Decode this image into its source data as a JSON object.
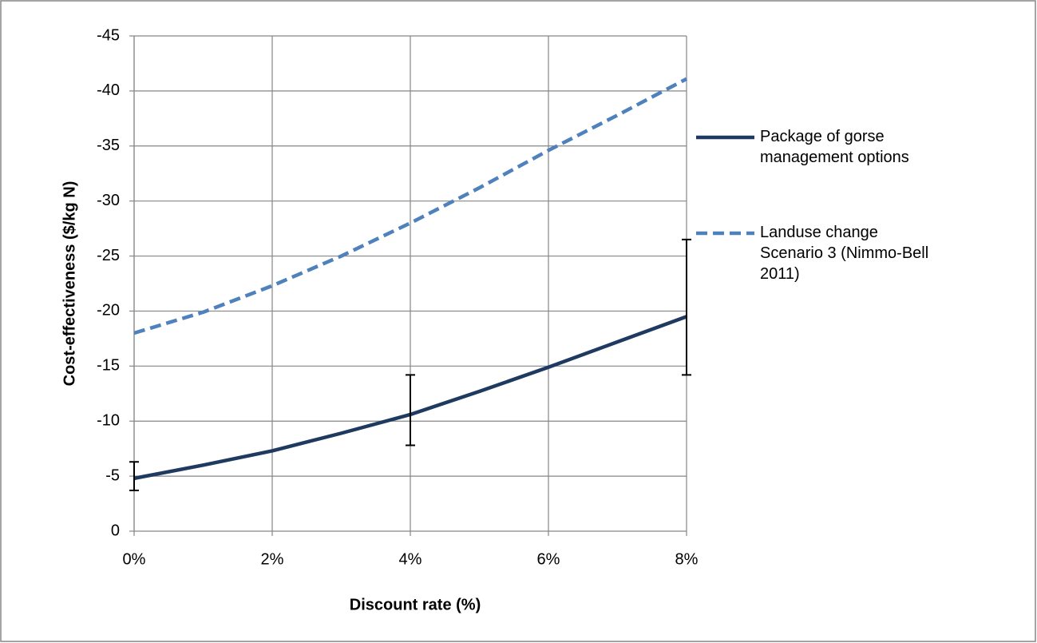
{
  "chart_data": {
    "type": "line",
    "xlabel": "Discount rate (%)",
    "ylabel": "Cost-effectiveness ($/kg N)",
    "x": [
      0,
      1,
      2,
      3,
      4,
      5,
      6,
      7,
      8
    ],
    "series": [
      {
        "name": "Package of gorse management options",
        "color": "#1f3a60",
        "dash": false,
        "values": [
          -4.8,
          -6.0,
          -7.3,
          -8.9,
          -10.6,
          -12.7,
          -14.9,
          -17.2,
          -19.5
        ],
        "error_range": [
          [
            -3.7,
            -6.3
          ],
          null,
          null,
          null,
          [
            -7.8,
            -14.2
          ],
          null,
          null,
          null,
          [
            -14.2,
            -26.5
          ]
        ]
      },
      {
        "name": "Landuse change Scenario 3 (Nimmo-Bell 2011)",
        "color": "#4f81bd",
        "dash": true,
        "values": [
          -18.0,
          -19.9,
          -22.3,
          -25.0,
          -28.0,
          -31.2,
          -34.6,
          -37.8,
          -41.1
        ]
      }
    ],
    "xlim": [
      0,
      8
    ],
    "xticks": [
      {
        "value": 0,
        "label": "0%"
      },
      {
        "value": 2,
        "label": "2%"
      },
      {
        "value": 4,
        "label": "4%"
      },
      {
        "value": 6,
        "label": "6%"
      },
      {
        "value": 8,
        "label": "8%"
      }
    ],
    "ylim": [
      0,
      -45
    ],
    "yticks": [
      -45,
      -40,
      -35,
      -30,
      -25,
      -20,
      -15,
      -10,
      -5,
      0
    ],
    "grid": true,
    "legend": "right"
  }
}
